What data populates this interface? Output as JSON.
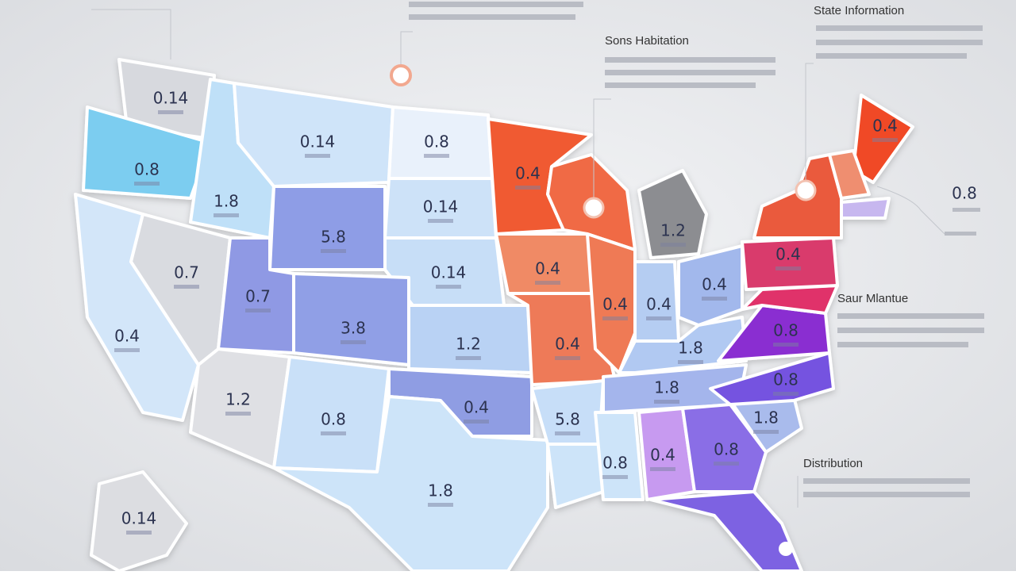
{
  "annotations": [
    {
      "heading": "State Information"
    },
    {
      "heading": "Sons Habitation"
    },
    {
      "heading": "Saur Mlantue"
    },
    {
      "heading": "Distribution"
    }
  ],
  "side_value": "0.8",
  "regions": [
    {
      "label": "0.14",
      "color": "#d7d9de"
    },
    {
      "label": "0.8",
      "color": "#7ccdf0"
    },
    {
      "label": "1.8",
      "color": "#bfe0f8"
    },
    {
      "label": "0.14",
      "color": "#cfe4f9"
    },
    {
      "label": "0.8",
      "color": "#e9f1fb"
    },
    {
      "label": "0.14",
      "color": "#cde2f8"
    },
    {
      "label": "5.8",
      "color": "#8e9de6"
    },
    {
      "label": "0.14",
      "color": "#c7def7"
    },
    {
      "label": "0.4",
      "color": "#d3e6f9"
    },
    {
      "label": "0.7",
      "color": "#d9dbe0"
    },
    {
      "label": "0.7",
      "color": "#8f99e4"
    },
    {
      "label": "3.8",
      "color": "#909fe6"
    },
    {
      "label": "1.2",
      "color": "#dfe0e4"
    },
    {
      "label": "0.8",
      "color": "#c9e0f8"
    },
    {
      "label": "1.2",
      "color": "#b9d2f4"
    },
    {
      "label": "0.4",
      "color": "#8f9de3"
    },
    {
      "label": "1.8",
      "color": "#cde4f9"
    },
    {
      "label": "0.4",
      "color": "#f05a30"
    },
    {
      "label": "0.4",
      "color": "#f08a65"
    },
    {
      "label": "0.4",
      "color": "#ee7a58"
    },
    {
      "color": "#f06a45"
    },
    {
      "label": "0.4",
      "color": "#ef7a55"
    },
    {
      "label": "1.2",
      "color": "#8c8d91"
    },
    {
      "label": "0.4",
      "color": "#b5cdf2"
    },
    {
      "label": "0.4",
      "color": "#a2b8ec"
    },
    {
      "label": "1.8",
      "color": "#b1c9f2"
    },
    {
      "label": "1.8",
      "color": "#a4b5ec"
    },
    {
      "label": "5.8",
      "color": "#c7def8"
    },
    {
      "color": "#cde4f9"
    },
    {
      "label": "0.8",
      "color": "#cde4f9"
    },
    {
      "label": "0.4",
      "color": "#c79af0"
    },
    {
      "label": "0.8",
      "color": "#8a6ee6"
    },
    {
      "color": "#7d62e2"
    },
    {
      "label": "1.8",
      "color": "#a9bbec"
    },
    {
      "label": "0.8",
      "color": "#7552e0"
    },
    {
      "label": "0.8",
      "color": "#8a2fd1"
    },
    {
      "color": "#e0316a"
    },
    {
      "label": "0.4",
      "color": "#d93a6c"
    },
    {
      "color": "#ea5a3c"
    },
    {
      "label": "0.4",
      "color": "#f04a25"
    },
    {
      "color": "#ef8e70"
    },
    {
      "color": "#c7b7ef"
    },
    {
      "label": "0.14",
      "color": "#dcdde1"
    }
  ]
}
